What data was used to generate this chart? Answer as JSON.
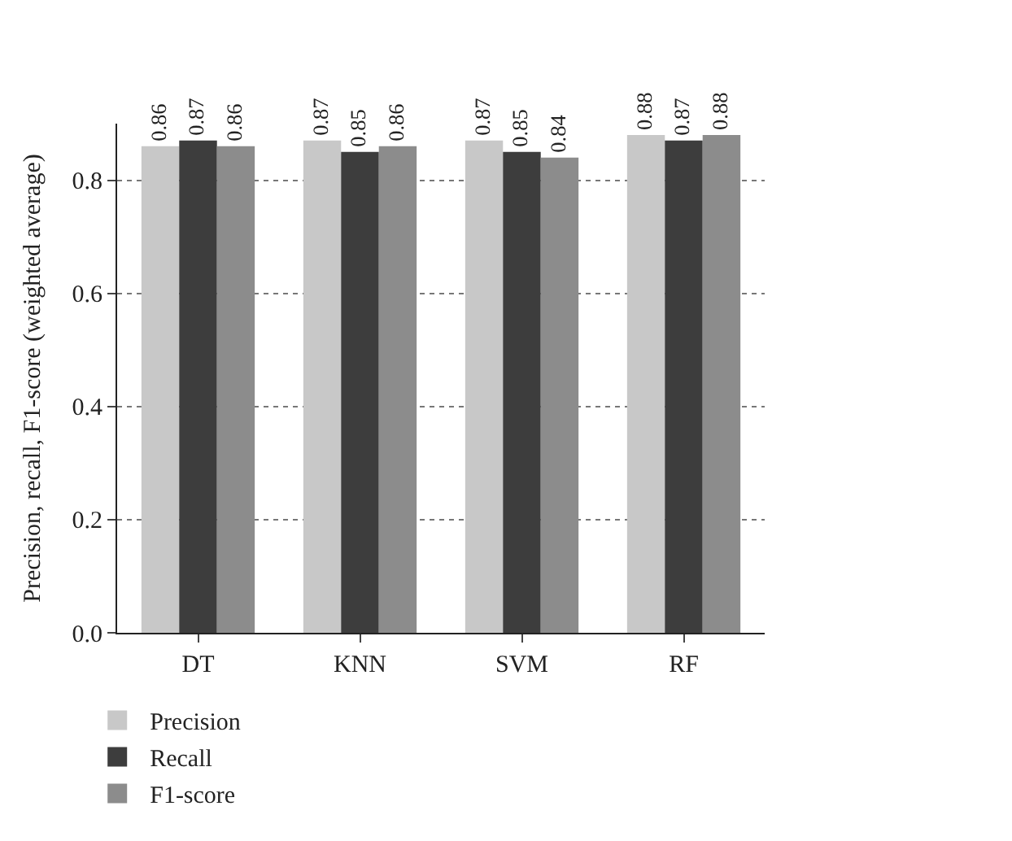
{
  "chart_data": {
    "type": "bar",
    "ylabel": "Precision, recall, F1-score (weighted average)",
    "categories": [
      "DT",
      "KNN",
      "SVM",
      "RF"
    ],
    "series": [
      {
        "name": "Precision",
        "color": "#c8c8c8",
        "values": [
          0.86,
          0.87,
          0.87,
          0.88
        ]
      },
      {
        "name": "Recall",
        "color": "#3d3d3d",
        "values": [
          0.87,
          0.85,
          0.85,
          0.87
        ]
      },
      {
        "name": "F1-score",
        "color": "#8c8c8c",
        "values": [
          0.86,
          0.86,
          0.84,
          0.88
        ]
      }
    ],
    "ylim": [
      0,
      0.9
    ],
    "yticks": [
      {
        "value": 0,
        "label": "0.0"
      },
      {
        "value": 0.2,
        "label": "0.2"
      },
      {
        "value": 0.4,
        "label": "0.4"
      },
      {
        "value": 0.6,
        "label": "0.6"
      },
      {
        "value": 0.8,
        "label": "0.8"
      }
    ],
    "grid": "y",
    "legend": "bottom left",
    "data_labels": true
  }
}
